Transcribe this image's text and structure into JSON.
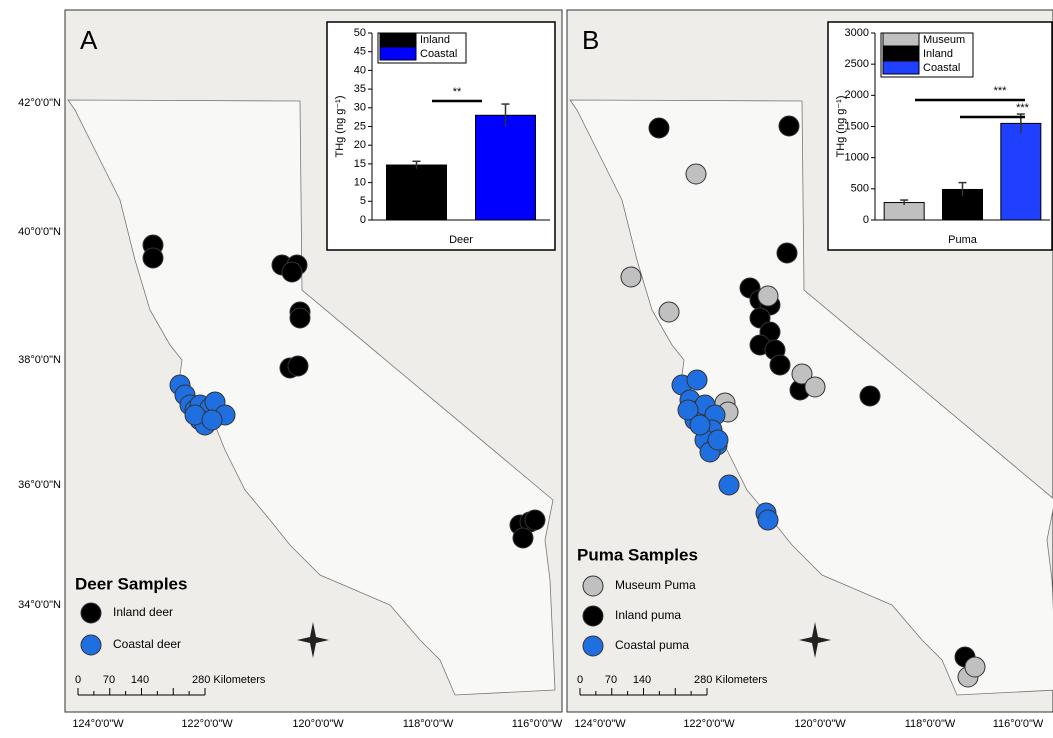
{
  "lat_labels": [
    "42°0'0\"N",
    "40°0'0\"N",
    "38°0'0\"N",
    "36°0'0\"N",
    "34°0'0\"N"
  ],
  "panels": [
    {
      "label": "A",
      "legend_title": "Deer Samples",
      "legend_items": [
        "Inland deer",
        "Coastal deer"
      ],
      "scale_labels": [
        "0",
        "70",
        "140",
        "280 Kilometers"
      ],
      "lon_labels": [
        "124°0'0\"W",
        "122°0'0\"W",
        "120°0'0\"W",
        "118°0'0\"W",
        "116°0'0\"W"
      ],
      "inset": {
        "type": "bar",
        "ylabel": "THg (ng g⁻¹)",
        "xlabel": "Deer",
        "categories": [
          "Inland",
          "Coastal"
        ],
        "colors": [
          "#000000",
          "#0000ff"
        ],
        "values": [
          14.7,
          28
        ],
        "errors": [
          1,
          3
        ],
        "ylim": [
          0,
          50
        ],
        "yticks": [
          0,
          5,
          10,
          15,
          20,
          25,
          30,
          35,
          40,
          45,
          50
        ],
        "significance": [
          "**"
        ]
      }
    },
    {
      "label": "B",
      "legend_title": "Puma Samples",
      "legend_items": [
        "Museum Puma",
        "Inland puma",
        "Coastal puma"
      ],
      "scale_labels": [
        "0",
        "70",
        "140",
        "280 Kilometers"
      ],
      "lon_labels": [
        "124°0'0\"W",
        "122°0'0\"W",
        "120°0'0\"W",
        "118°0'0\"W",
        "116°0'0\"W"
      ],
      "inset": {
        "type": "bar",
        "ylabel": "THg (ng g⁻¹)",
        "xlabel": "Puma",
        "categories": [
          "Museum",
          "Inland",
          "Coastal"
        ],
        "colors": [
          "#c0c0c0",
          "#000000",
          "#2040ff"
        ],
        "values": [
          280,
          490,
          1550
        ],
        "errors": [
          40,
          110,
          150
        ],
        "ylim": [
          0,
          3000
        ],
        "yticks": [
          0,
          500,
          1000,
          1500,
          2000,
          2500,
          3000
        ],
        "significance": [
          "***",
          "***"
        ]
      }
    }
  ]
}
